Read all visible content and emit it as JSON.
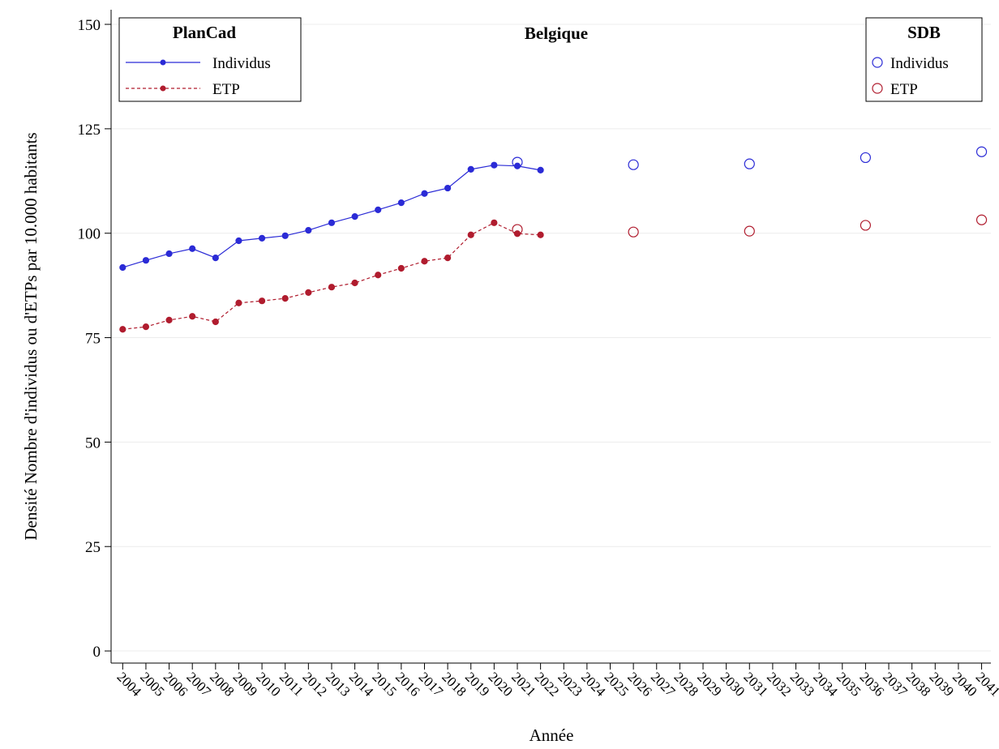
{
  "chart_data": {
    "type": "line",
    "title": "Belgique",
    "x_label": "Année",
    "y_label": "Densité Nombre d'individus ou d'ETPs par 10.000 habitants",
    "xlim": [
      2003.5,
      2041.4
    ],
    "ylim": [
      -2.9,
      153.5
    ],
    "xticks": [
      2004,
      2005,
      2006,
      2007,
      2008,
      2009,
      2010,
      2011,
      2012,
      2013,
      2014,
      2015,
      2016,
      2017,
      2018,
      2019,
      2020,
      2021,
      2022,
      2023,
      2024,
      2025,
      2026,
      2027,
      2028,
      2029,
      2030,
      2031,
      2032,
      2033,
      2034,
      2035,
      2036,
      2037,
      2038,
      2039,
      2040,
      2041
    ],
    "yticks": [
      0,
      25,
      50,
      75,
      100,
      125,
      150
    ],
    "grid": true,
    "groups": [
      {
        "name": "PlanCad",
        "legend": "upper left",
        "series": [
          {
            "name": "Individus",
            "color": "#2b2bd6",
            "line": "solid",
            "marker": "filled",
            "x": [
              2004,
              2005,
              2006,
              2007,
              2008,
              2009,
              2010,
              2011,
              2012,
              2013,
              2014,
              2015,
              2016,
              2017,
              2018,
              2019,
              2020,
              2021,
              2022
            ],
            "values": [
              91.8,
              93.5,
              95.1,
              96.3,
              94.1,
              98.2,
              98.8,
              99.4,
              100.7,
              102.5,
              104.0,
              105.6,
              107.3,
              109.5,
              110.8,
              115.3,
              116.3,
              116.1,
              115.1
            ]
          },
          {
            "name": "ETP",
            "color": "#b01c2e",
            "line": "dashed",
            "marker": "filled",
            "x": [
              2004,
              2005,
              2006,
              2007,
              2008,
              2009,
              2010,
              2011,
              2012,
              2013,
              2014,
              2015,
              2016,
              2017,
              2018,
              2019,
              2020,
              2021,
              2022
            ],
            "values": [
              77.0,
              77.6,
              79.2,
              80.1,
              78.8,
              83.3,
              83.8,
              84.4,
              85.8,
              87.1,
              88.1,
              90.0,
              91.6,
              93.3,
              94.1,
              99.6,
              102.5,
              99.9,
              99.6
            ]
          }
        ]
      },
      {
        "name": "SDB",
        "legend": "upper right",
        "series": [
          {
            "name": "Individus",
            "color": "#2b2bd6",
            "line": "none",
            "marker": "hollow",
            "x": [
              2021,
              2026,
              2031,
              2036,
              2041
            ],
            "values": [
              117.0,
              116.4,
              116.6,
              118.1,
              119.5
            ]
          },
          {
            "name": "ETP",
            "color": "#b01c2e",
            "line": "none",
            "marker": "hollow",
            "x": [
              2021,
              2026,
              2031,
              2036,
              2041
            ],
            "values": [
              100.9,
              100.3,
              100.5,
              101.9,
              103.2
            ]
          }
        ]
      }
    ]
  }
}
